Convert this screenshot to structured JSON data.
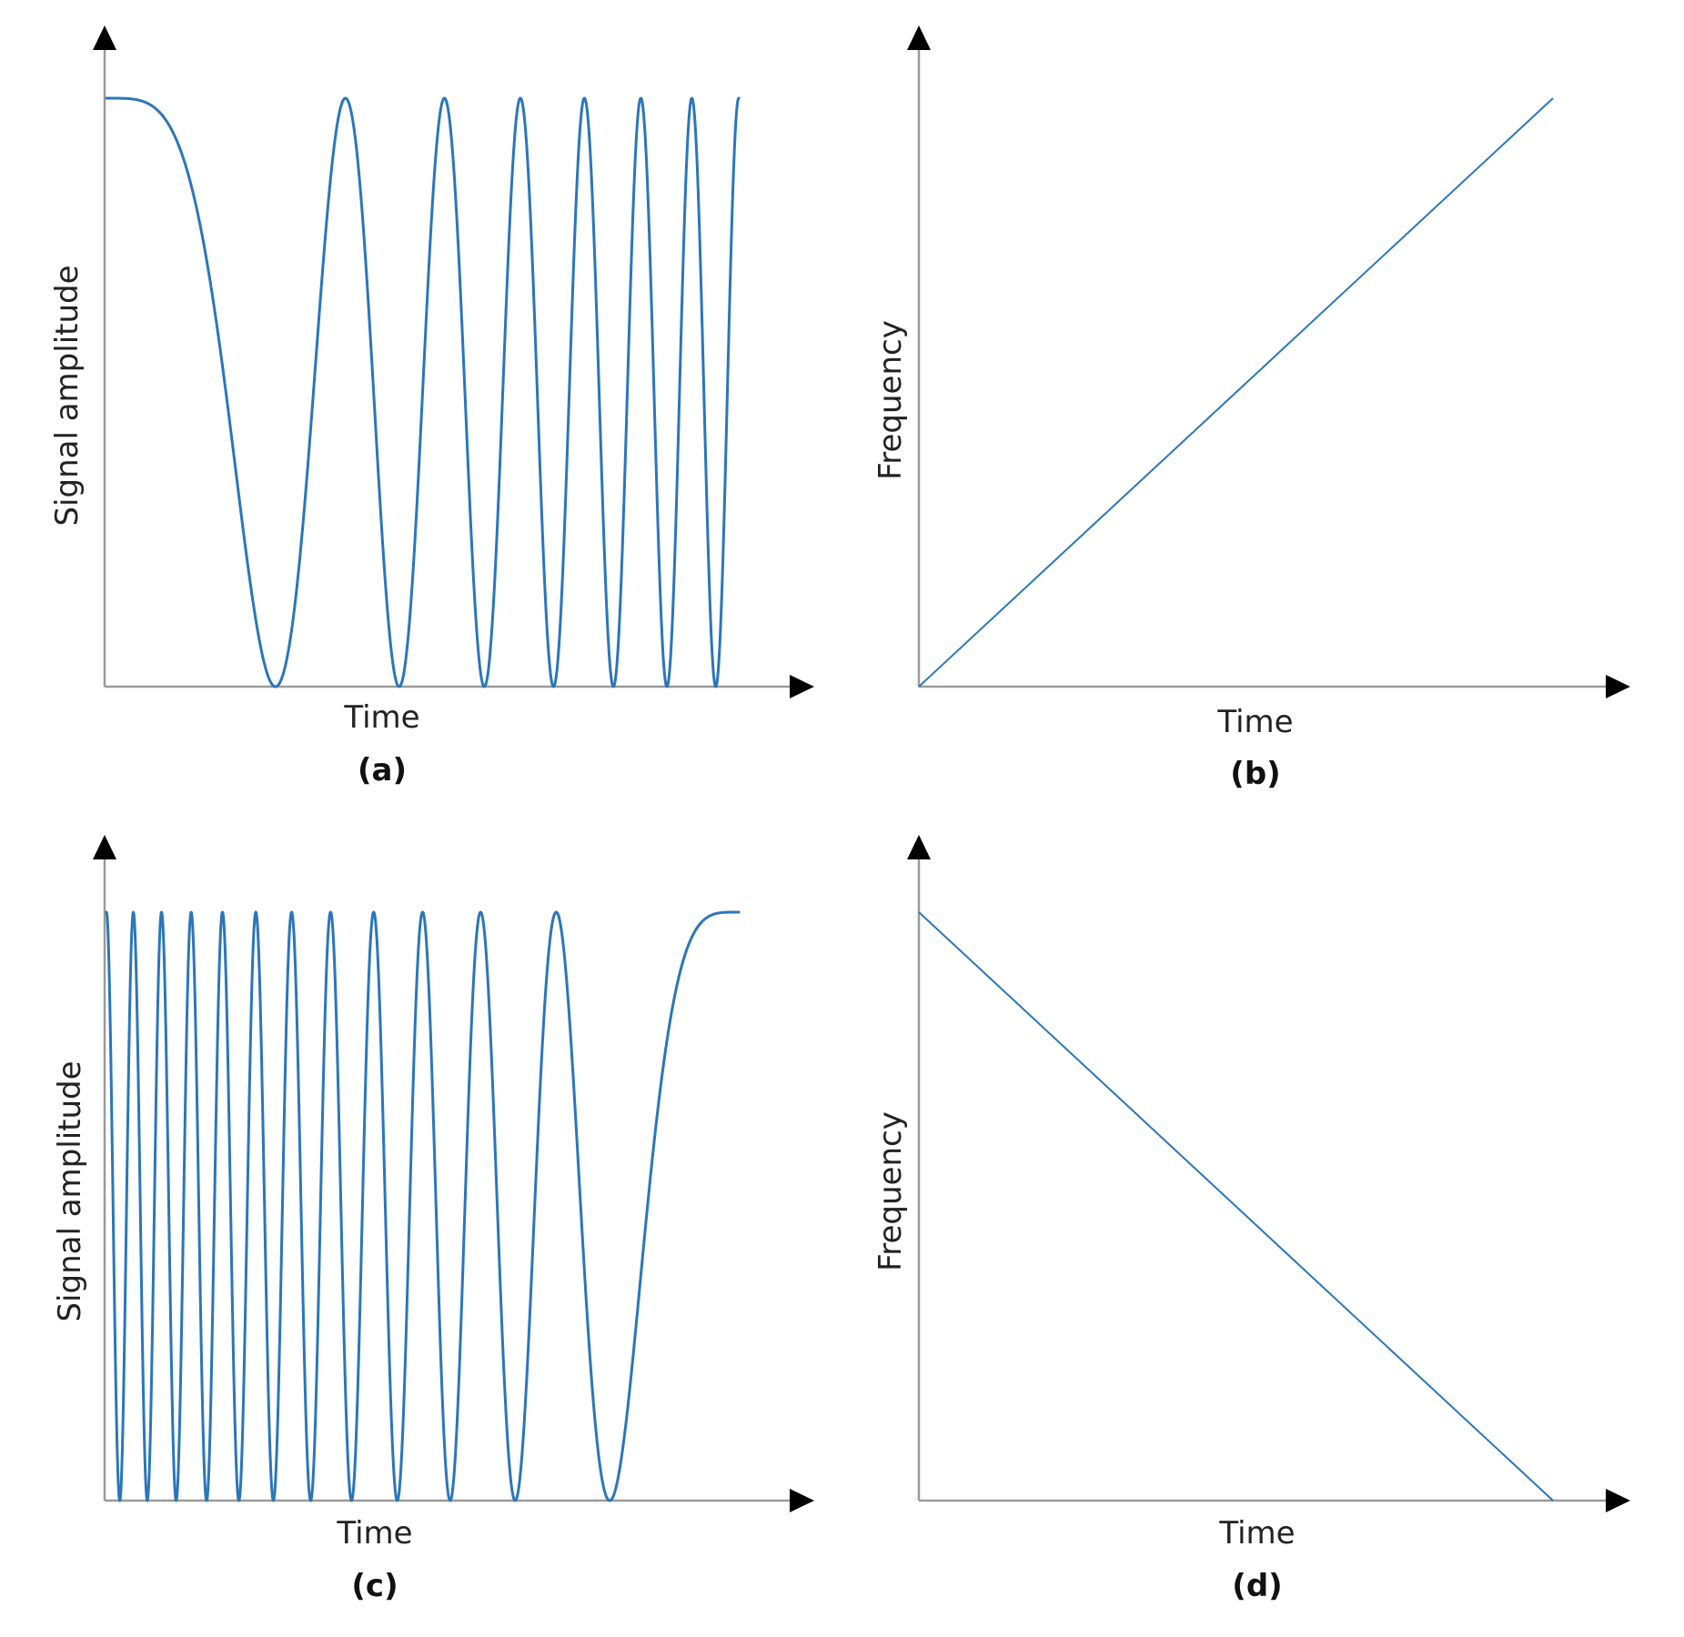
{
  "colors": {
    "signal": "#2b76b9",
    "axis": "#9a9a9a",
    "arrow": "#000000",
    "text": "#222222"
  },
  "chart_data": [
    {
      "panel": "(a)",
      "type": "line",
      "xlabel": "Time",
      "ylabel": "Signal amplitude",
      "ticks": "none",
      "grid": false,
      "description_of_series": "up-chirp",
      "series": [
        {
          "function": "cos(2*pi*k*t^2/2)",
          "t_range": [
            0,
            1
          ],
          "cycles_total": 7,
          "amplitude_range": [
            -1,
            1
          ],
          "instantaneous_frequency": "increasing"
        }
      ]
    },
    {
      "panel": "(b)",
      "type": "line",
      "xlabel": "Time",
      "ylabel": "Frequency",
      "ticks": "none",
      "grid": false,
      "series": [
        {
          "x": [
            0,
            1
          ],
          "y": [
            0,
            1
          ]
        }
      ]
    },
    {
      "panel": "(c)",
      "type": "line",
      "xlabel": "Time",
      "ylabel": "Signal amplitude",
      "ticks": "none",
      "grid": false,
      "series": [
        {
          "function": "cos(2*pi*k*(1-t)^2/2)",
          "t_range": [
            0,
            1
          ],
          "cycles_total": 12,
          "amplitude_range": [
            -1,
            1
          ],
          "instantaneous_frequency": "decreasing"
        }
      ]
    },
    {
      "panel": "(d)",
      "type": "line",
      "xlabel": "Time",
      "ylabel": "Frequency",
      "ticks": "none",
      "grid": false,
      "series": [
        {
          "x": [
            0,
            1
          ],
          "y": [
            1,
            0
          ]
        }
      ]
    }
  ]
}
